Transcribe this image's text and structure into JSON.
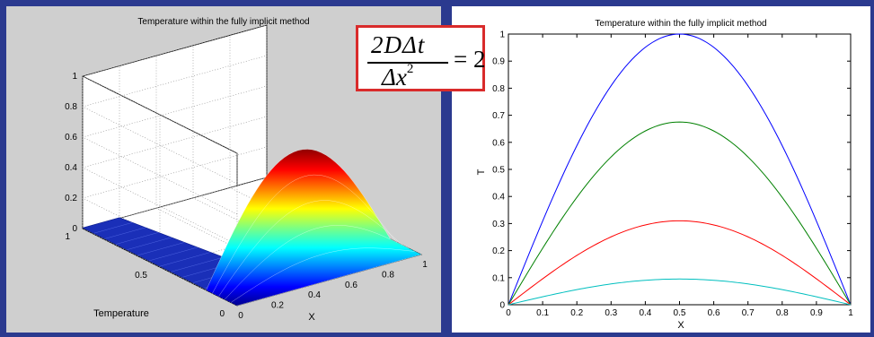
{
  "formula": {
    "numerator": "2DΔt",
    "denominator_base": "Δx",
    "denominator_exponent": "2",
    "rhs": "= 2"
  },
  "chart_data": [
    {
      "type": "surface",
      "title": "Temperature within the fully implicit method",
      "xlabel": "X",
      "ylabel": "Temperature",
      "zlabel": "",
      "x_ticks": [
        "0",
        "0.2",
        "0.4",
        "0.6",
        "0.8",
        "1"
      ],
      "y_ticks": [
        "0",
        "0.5",
        "1"
      ],
      "z_ticks": [
        "0",
        "0.2",
        "0.4",
        "0.6",
        "0.8",
        "1"
      ],
      "xlim": [
        0,
        1
      ],
      "ylim": [
        0,
        1
      ],
      "zlim": [
        0,
        1
      ],
      "peak_value": 0.75,
      "peak_at_x": 0.5,
      "colormap": "jet",
      "grid": true
    },
    {
      "type": "line",
      "title": "Temperature within the fully implicit method",
      "xlabel": "X",
      "ylabel": "T",
      "xlim": [
        0,
        1
      ],
      "ylim": [
        0,
        1
      ],
      "x_ticks": [
        "0",
        "0.1",
        "0.2",
        "0.3",
        "0.4",
        "0.5",
        "0.6",
        "0.7",
        "0.8",
        "0.9",
        "1"
      ],
      "y_ticks": [
        "0",
        "0.1",
        "0.2",
        "0.3",
        "0.4",
        "0.5",
        "0.6",
        "0.7",
        "0.8",
        "0.9",
        "1"
      ],
      "series": [
        {
          "color": "#0000ff",
          "peak": 1.0,
          "shape": "sin(pi*x)"
        },
        {
          "color": "#008000",
          "peak": 0.675,
          "shape": "sin(pi*x)"
        },
        {
          "color": "#ff0000",
          "peak": 0.31,
          "shape": "sin(pi*x)"
        },
        {
          "color": "#00bfbf",
          "peak": 0.095,
          "shape": "sin(pi*x)"
        }
      ]
    }
  ]
}
